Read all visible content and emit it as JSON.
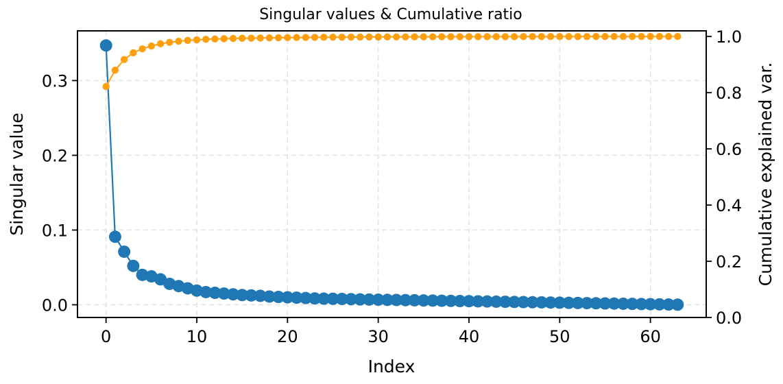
{
  "chart_data": {
    "type": "line",
    "title": "Singular values & Cumulative ratio",
    "xlabel": "Index",
    "ylabel": "Singular value",
    "y2label": "Cumulative explained var.",
    "xlim": [
      -3.15,
      66.15
    ],
    "ylim": [
      -0.017,
      0.3665
    ],
    "y2lim": [
      0.0,
      1.02
    ],
    "x_ticks": [
      0,
      10,
      20,
      30,
      40,
      50,
      60
    ],
    "y_ticks": [
      0.0,
      0.1,
      0.2,
      0.3
    ],
    "y_tick_labels": [
      "0.0",
      "0.1",
      "0.2",
      "0.3"
    ],
    "y2_ticks": [
      0.0,
      0.2,
      0.4,
      0.6,
      0.8,
      1.0
    ],
    "y2_tick_labels": [
      "0.0",
      "0.2",
      "0.4",
      "0.6",
      "0.8",
      "1.0"
    ],
    "grid": true,
    "series": [
      {
        "axis": "left",
        "color": "#1f77b4",
        "marker": "large-circle",
        "x": [
          0,
          1,
          2,
          3,
          4,
          5,
          6,
          7,
          8,
          9,
          10,
          11,
          12,
          13,
          14,
          15,
          16,
          17,
          18,
          19,
          20,
          21,
          22,
          23,
          24,
          25,
          26,
          27,
          28,
          29,
          30,
          31,
          32,
          33,
          34,
          35,
          36,
          37,
          38,
          39,
          40,
          41,
          42,
          43,
          44,
          45,
          46,
          47,
          48,
          49,
          50,
          51,
          52,
          53,
          54,
          55,
          56,
          57,
          58,
          59,
          60,
          61,
          62,
          63
        ],
        "values": [
          0.347,
          0.091,
          0.071,
          0.052,
          0.04,
          0.038,
          0.034,
          0.028,
          0.025,
          0.022,
          0.019,
          0.017,
          0.016,
          0.015,
          0.014,
          0.013,
          0.0125,
          0.012,
          0.011,
          0.0105,
          0.01,
          0.0095,
          0.009,
          0.0085,
          0.0082,
          0.008,
          0.0078,
          0.0075,
          0.0072,
          0.007,
          0.0068,
          0.0066,
          0.0064,
          0.0062,
          0.006,
          0.0058,
          0.0056,
          0.0054,
          0.0052,
          0.005,
          0.0048,
          0.0046,
          0.0044,
          0.0042,
          0.004,
          0.0038,
          0.0036,
          0.0034,
          0.0032,
          0.003,
          0.0028,
          0.0026,
          0.0024,
          0.0022,
          0.002,
          0.0018,
          0.0016,
          0.0014,
          0.0012,
          0.001,
          0.0008,
          0.0006,
          0.0004,
          0.0002
        ]
      },
      {
        "axis": "right",
        "color": "#ff9f0e",
        "marker": "small-circle",
        "x": [
          0,
          1,
          2,
          3,
          4,
          5,
          6,
          7,
          8,
          9,
          10,
          11,
          12,
          13,
          14,
          15,
          16,
          17,
          18,
          19,
          20,
          21,
          22,
          23,
          24,
          25,
          26,
          27,
          28,
          29,
          30,
          31,
          32,
          33,
          34,
          35,
          36,
          37,
          38,
          39,
          40,
          41,
          42,
          43,
          44,
          45,
          46,
          47,
          48,
          49,
          50,
          51,
          52,
          53,
          54,
          55,
          56,
          57,
          58,
          59,
          60,
          61,
          62,
          63
        ],
        "values": [
          0.822,
          0.88,
          0.918,
          0.942,
          0.956,
          0.966,
          0.974,
          0.979,
          0.983,
          0.986,
          0.988,
          0.99,
          0.991,
          0.992,
          0.993,
          0.9935,
          0.994,
          0.9945,
          0.995,
          0.9955,
          0.996,
          0.9963,
          0.9966,
          0.9969,
          0.9972,
          0.9975,
          0.9977,
          0.9979,
          0.998,
          0.9982,
          0.9983,
          0.9984,
          0.9985,
          0.9986,
          0.9987,
          0.9988,
          0.9989,
          0.999,
          0.9991,
          0.9992,
          0.9992,
          0.9993,
          0.9994,
          0.9994,
          0.9995,
          0.9995,
          0.9996,
          0.9996,
          0.9997,
          0.9997,
          0.9997,
          0.9998,
          0.9998,
          0.9998,
          0.9999,
          0.9999,
          0.9999,
          0.9999,
          1.0,
          1.0,
          1.0,
          1.0,
          1.0,
          1.0
        ]
      }
    ]
  }
}
